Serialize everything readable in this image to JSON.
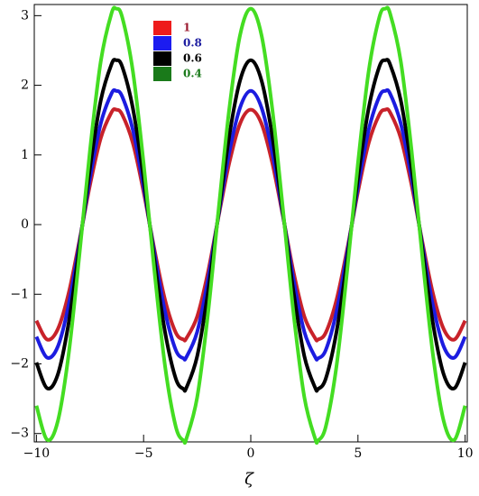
{
  "chart_data": {
    "type": "line",
    "x_label": "ζ",
    "x": [
      -10,
      -9.5,
      -9,
      -8.5,
      -8,
      -7.5,
      -7,
      -6.5,
      -6.28,
      -6,
      -5.5,
      -5,
      -4.5,
      -4,
      -3.5,
      -3.14,
      -3,
      -2.5,
      -2,
      -1.5,
      -1,
      -0.5,
      0,
      0.5,
      1,
      1.5,
      2,
      2.5,
      3,
      3.14,
      3.5,
      4,
      4.5,
      5,
      5.5,
      6,
      6.28,
      6.5,
      7,
      7.5,
      8,
      8.5,
      9,
      9.5,
      10
    ],
    "series": [
      {
        "name": "1",
        "color": "#c8222a",
        "legend_color": "#ee1c1c",
        "label_color": "#9b1b30",
        "values": [
          -1.38,
          -1.65,
          -1.5,
          -0.99,
          -0.24,
          0.57,
          1.24,
          1.61,
          1.65,
          1.58,
          1.17,
          0.47,
          -0.35,
          -1.08,
          -1.55,
          -1.65,
          -1.63,
          -1.32,
          -0.69,
          0.12,
          0.89,
          1.45,
          1.65,
          1.45,
          0.89,
          0.12,
          -0.69,
          -1.32,
          -1.63,
          -1.65,
          -1.55,
          -1.08,
          -0.35,
          0.47,
          1.17,
          1.58,
          1.65,
          1.61,
          1.24,
          0.57,
          -0.24,
          -0.99,
          -1.5,
          -1.65,
          -1.38
        ]
      },
      {
        "name": "0.8",
        "color": "#1c1ce0",
        "legend_color": "#1c1cf0",
        "label_color": "#1c1ca0",
        "values": [
          -1.61,
          -1.91,
          -1.75,
          -1.16,
          -0.28,
          0.67,
          1.45,
          1.88,
          1.92,
          1.84,
          1.36,
          0.54,
          -0.4,
          -1.25,
          -1.8,
          -1.92,
          -1.9,
          -1.54,
          -0.8,
          0.14,
          1.04,
          1.68,
          1.92,
          1.68,
          1.04,
          0.14,
          -0.8,
          -1.54,
          -1.9,
          -1.92,
          -1.8,
          -1.25,
          -0.4,
          0.54,
          1.36,
          1.84,
          1.92,
          1.88,
          1.45,
          0.67,
          -0.28,
          -1.16,
          -1.75,
          -1.91,
          -1.61
        ]
      },
      {
        "name": "0.6",
        "color": "#000000",
        "legend_color": "#000000",
        "label_color": "#000000",
        "values": [
          -1.98,
          -2.35,
          -2.15,
          -1.42,
          -0.34,
          0.82,
          1.78,
          2.3,
          2.36,
          2.27,
          1.67,
          0.67,
          -0.5,
          -1.54,
          -2.21,
          -2.36,
          -2.34,
          -1.89,
          -0.98,
          0.17,
          1.28,
          2.07,
          2.36,
          2.07,
          1.28,
          0.17,
          -0.98,
          -1.89,
          -2.34,
          -2.36,
          -2.21,
          -1.54,
          -0.5,
          0.67,
          1.67,
          2.27,
          2.36,
          2.3,
          1.78,
          0.82,
          -0.34,
          -1.42,
          -2.15,
          -2.35,
          -1.98
        ]
      },
      {
        "name": "0.4",
        "color": "#44dd22",
        "legend_color": "#1a7a1a",
        "label_color": "#1a7a1a",
        "values": [
          -2.6,
          -3.09,
          -2.82,
          -1.87,
          -0.45,
          1.07,
          2.34,
          3.03,
          3.1,
          2.98,
          2.2,
          0.88,
          -0.65,
          -2.03,
          -2.9,
          -3.1,
          -3.07,
          -2.48,
          -1.29,
          0.22,
          1.67,
          2.72,
          3.1,
          2.72,
          1.67,
          0.22,
          -1.29,
          -2.48,
          -3.07,
          -3.1,
          -2.9,
          -2.03,
          -0.65,
          0.88,
          2.2,
          2.98,
          3.1,
          3.03,
          2.34,
          1.07,
          -0.45,
          -1.87,
          -2.82,
          -3.09,
          -2.6
        ]
      }
    ],
    "xlim": [
      -10.1,
      10.1
    ],
    "ylim": [
      -3.12,
      3.16
    ],
    "xticks": [
      {
        "value": -10,
        "label": "−10"
      },
      {
        "value": -5,
        "label": "−5"
      },
      0,
      5,
      10
    ],
    "yticks": [
      {
        "value": -3,
        "label": "−3"
      },
      {
        "value": -2,
        "label": "−2"
      },
      {
        "value": -1,
        "label": "−1"
      },
      0,
      1,
      2,
      3
    ],
    "legend": "upper-left"
  }
}
